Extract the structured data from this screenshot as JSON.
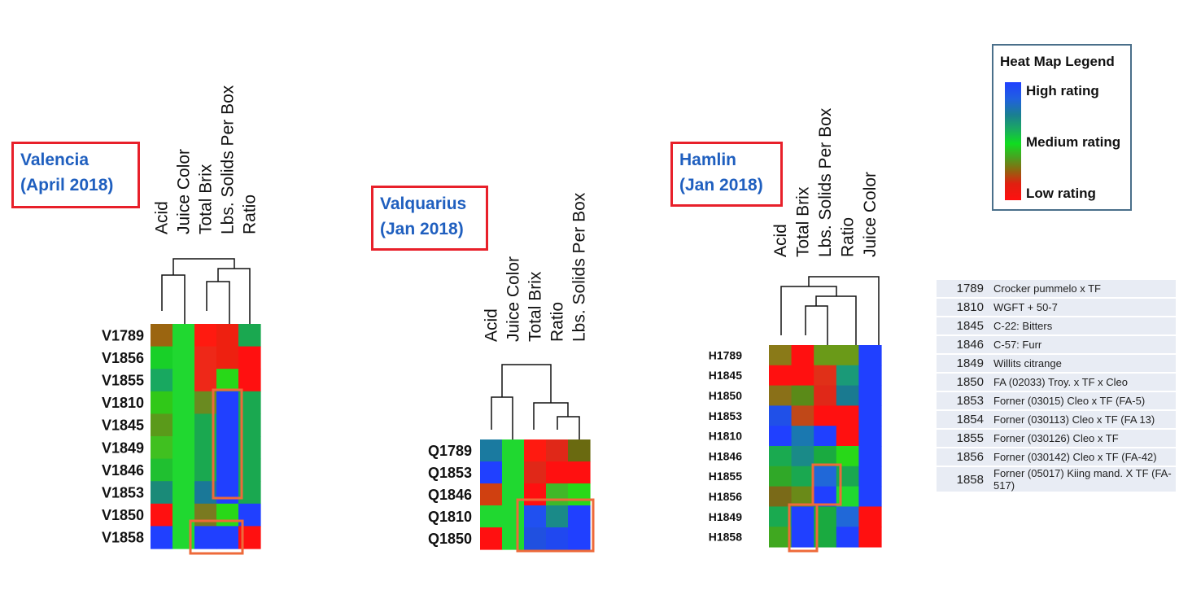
{
  "colors": {
    "high": "#2040ff",
    "medium": "#10dd20",
    "low": "#ff1010",
    "outline": "#ee6a3a",
    "title_border": "#e8202a",
    "title_text": "#1f5fbf"
  },
  "legend": {
    "title": "Heat Map Legend",
    "high": "High rating",
    "medium": "Medium rating",
    "low": "Low rating"
  },
  "chart_data": [
    {
      "type": "heatmap",
      "title_line1": "Valencia",
      "title_line2": "(April 2018)",
      "columns": [
        "Acid",
        "Juice Color",
        "Total Brix",
        "Lbs. Solids Per Box",
        "Ratio"
      ],
      "rows": [
        "V1789",
        "V1856",
        "V1855",
        "V1810",
        "V1845",
        "V1849",
        "V1846",
        "V1853",
        "V1850",
        "V1858"
      ],
      "colors": [
        [
          "#9b6510",
          "#20d830",
          "#ff1a10",
          "#ee2010",
          "#1aa850"
        ],
        [
          "#18d028",
          "#20d830",
          "#ee2818",
          "#ee2010",
          "#ff1010"
        ],
        [
          "#18a860",
          "#20d830",
          "#ee2818",
          "#28d818",
          "#ff1010"
        ],
        [
          "#30c818",
          "#20d830",
          "#6a8a20",
          "#2040ff",
          "#1aa850"
        ],
        [
          "#5a9a1a",
          "#20d830",
          "#1aa850",
          "#2040ff",
          "#1aa850"
        ],
        [
          "#40c020",
          "#20d830",
          "#1aa850",
          "#2040ff",
          "#1aa850"
        ],
        [
          "#20c030",
          "#20d830",
          "#1aa850",
          "#2040ff",
          "#1aa850"
        ],
        [
          "#1a8a78",
          "#20d830",
          "#1a7898",
          "#2040ff",
          "#1aa850"
        ],
        [
          "#ff1010",
          "#20d830",
          "#7a7a20",
          "#28d818",
          "#2040ff"
        ],
        [
          "#2040ff",
          "#20d830",
          "#2040ff",
          "#2040ff",
          "#ff1010"
        ]
      ]
    },
    {
      "type": "heatmap",
      "title_line1": "Valquarius",
      "title_line2": "(Jan 2018)",
      "columns": [
        "Acid",
        "Juice Color",
        "Total Brix",
        "Ratio",
        "Lbs. Solids Per Box"
      ],
      "rows": [
        "Q1789",
        "Q1853",
        "Q1846",
        "Q1810",
        "Q1850"
      ],
      "colors": [
        [
          "#1a7aa0",
          "#20d830",
          "#ff1a10",
          "#e02818",
          "#6a6a10"
        ],
        [
          "#2040ff",
          "#20d830",
          "#e02818",
          "#ff1010",
          "#ff1010"
        ],
        [
          "#d04010",
          "#20d830",
          "#ff1010",
          "#40b828",
          "#28d818"
        ],
        [
          "#20d830",
          "#20d830",
          "#2050f0",
          "#1a8a88",
          "#2040ff"
        ],
        [
          "#ff1010",
          "#20d830",
          "#2050e0",
          "#2048f0",
          "#2040ff"
        ]
      ]
    },
    {
      "type": "heatmap",
      "title_line1": "Hamlin",
      "title_line2": "(Jan 2018)",
      "columns": [
        "Acid",
        "Total Brix",
        "Lbs. Solids Per Box",
        "Ratio",
        "Juice Color"
      ],
      "rows": [
        "H1789",
        "H1845",
        "H1850",
        "H1853",
        "H1810",
        "H1846",
        "H1855",
        "H1856",
        "H1849",
        "H1858"
      ],
      "colors": [
        [
          "#8a7a18",
          "#ff1010",
          "#6a9a18",
          "#6a9a18",
          "#2040ff"
        ],
        [
          "#ff1010",
          "#ff1010",
          "#e03018",
          "#1a9a78",
          "#2040ff"
        ],
        [
          "#8a7018",
          "#5a8a18",
          "#e02818",
          "#1a7a90",
          "#2040ff"
        ],
        [
          "#2050e8",
          "#c04818",
          "#ff1010",
          "#ff1010",
          "#2040ff"
        ],
        [
          "#2040ff",
          "#1a78b0",
          "#2040ff",
          "#ff1010",
          "#2040ff"
        ],
        [
          "#1aaa50",
          "#1a8a88",
          "#1aaa40",
          "#28d818",
          "#2040ff"
        ],
        [
          "#30a828",
          "#1aa850",
          "#2068d8",
          "#1aa850",
          "#2040ff"
        ],
        [
          "#7a6a18",
          "#6a8a18",
          "#2040ff",
          "#20d830",
          "#2040ff"
        ],
        [
          "#1aaa50",
          "#2040ff",
          "#1aaa40",
          "#2068d8",
          "#ff1010"
        ],
        [
          "#40a820",
          "#2040ff",
          "#1aaa40",
          "#2040ff",
          "#ff1010"
        ]
      ]
    }
  ],
  "key_table": [
    {
      "id": "1789",
      "desc": "Crocker pummelo x TF"
    },
    {
      "id": "1810",
      "desc": "WGFT + 50-7"
    },
    {
      "id": "1845",
      "desc": "C-22: Bitters"
    },
    {
      "id": "1846",
      "desc": "C-57: Furr"
    },
    {
      "id": "1849",
      "desc": "Willits citrange"
    },
    {
      "id": "1850",
      "desc": "FA (02033) Troy. x TF x Cleo"
    },
    {
      "id": "1853",
      "desc": "Forner (03015) Cleo x TF  (FA-5)"
    },
    {
      "id": "1854",
      "desc": "Forner (030113)  Cleo x TF (FA 13)"
    },
    {
      "id": "1855",
      "desc": "Forner (030126)  Cleo x TF"
    },
    {
      "id": "1856",
      "desc": "Forner (030142)  Cleo x TF (FA-42)"
    },
    {
      "id": "1858",
      "desc": "Forner (05017)  Kiing mand. X TF (FA-517)"
    }
  ]
}
